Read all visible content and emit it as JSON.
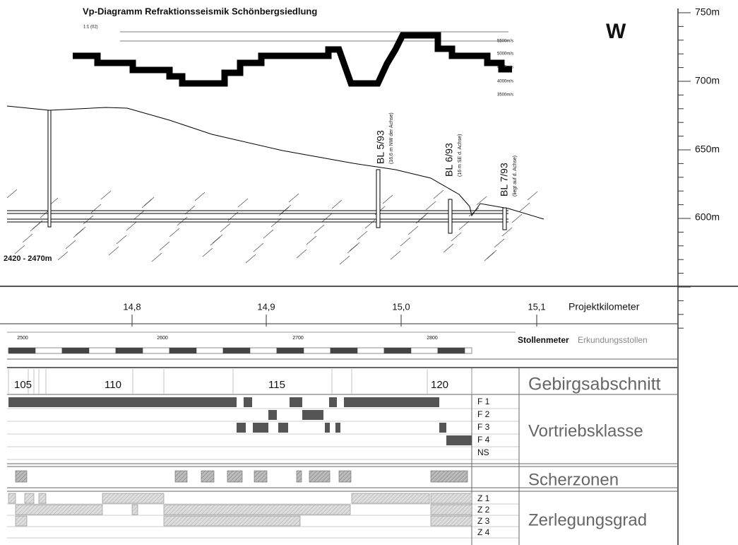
{
  "vp_diagram": {
    "title": "Vp-Diagramm Refraktionsseismik Schönbergsiedlung",
    "scale": "1:1 (02)",
    "velocities": [
      "5500m/s",
      "5000m/s",
      "4500m/s",
      "4000m/s",
      "3500m/s"
    ]
  },
  "elevation_axis": {
    "direction": "W",
    "labels": [
      "750m",
      "700m",
      "650m",
      "600m"
    ]
  },
  "profile": {
    "range": "2420 - 2470m",
    "boreholes": [
      {
        "label": "BL 5/93",
        "note": "(16,6 m NW der Achse)"
      },
      {
        "label": "BL 6/93",
        "note": "(16 m SE d. Achse)"
      },
      {
        "label": "BL 7/93",
        "note": "(liegt auf d. Achse)"
      }
    ]
  },
  "projektkilometer": {
    "label": "Projektkilometer",
    "ticks": [
      "14,8",
      "14,9",
      "15,0",
      "15,1"
    ]
  },
  "stollenmeter": {
    "label": "Stollenmeter",
    "name": "Erkundungsstollen",
    "ticks": [
      "2500",
      "2600",
      "2700",
      "2800"
    ]
  },
  "gebirgsabschnitt": {
    "label": "Gebirgsabschnitt",
    "ticks": [
      "105",
      "110",
      "115",
      "120"
    ]
  },
  "vortriebsklasse": {
    "label": "Vortriebsklasse",
    "classes": [
      "F 1",
      "F 2",
      "F 3",
      "F 4",
      "NS"
    ]
  },
  "scherzonen": {
    "label": "Scherzonen"
  },
  "zerlegungsgrad": {
    "label": "Zerlegungsgrad",
    "classes": [
      "Z 1",
      "Z 2",
      "Z 3",
      "Z 4"
    ]
  }
}
